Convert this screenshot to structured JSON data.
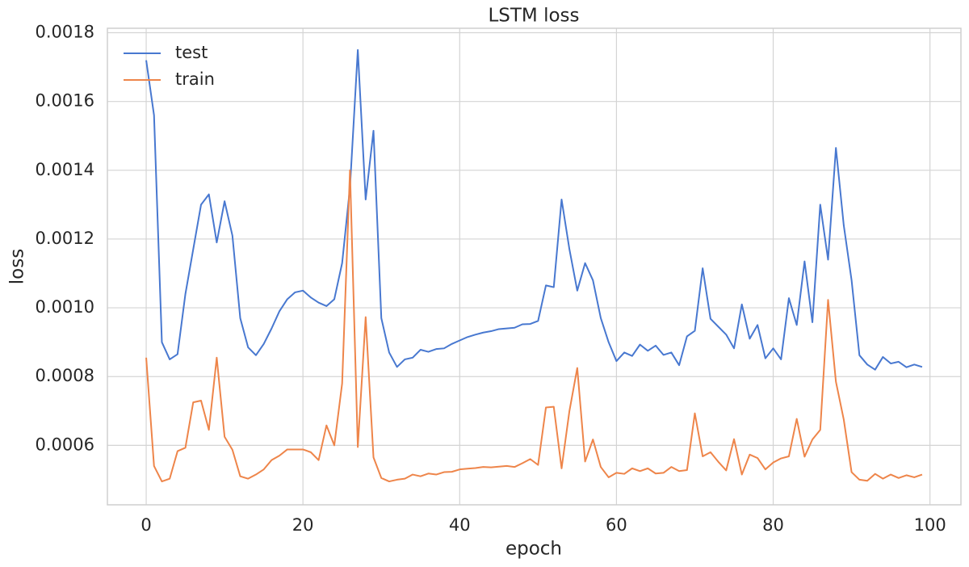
{
  "chart_data": {
    "type": "line",
    "title": "LSTM loss",
    "x_label": "epoch",
    "y_label": "loss",
    "x": [
      0,
      1,
      2,
      3,
      4,
      5,
      6,
      7,
      8,
      9,
      10,
      11,
      12,
      13,
      14,
      15,
      16,
      17,
      18,
      19,
      20,
      21,
      22,
      23,
      24,
      25,
      26,
      27,
      28,
      29,
      30,
      31,
      32,
      33,
      34,
      35,
      36,
      37,
      38,
      39,
      40,
      41,
      42,
      43,
      44,
      45,
      46,
      47,
      48,
      49,
      50,
      51,
      52,
      53,
      54,
      55,
      56,
      57,
      58,
      59,
      60,
      61,
      62,
      63,
      64,
      65,
      66,
      67,
      68,
      69,
      70,
      71,
      72,
      73,
      74,
      75,
      76,
      77,
      78,
      79,
      80,
      81,
      82,
      83,
      84,
      85,
      86,
      87,
      88,
      89,
      90,
      91,
      92,
      93,
      94,
      95,
      96,
      97,
      98,
      99
    ],
    "series": [
      {
        "name": "test",
        "color": "#4878d0",
        "values": [
          0.00172,
          0.00156,
          0.0009,
          0.00085,
          0.000865,
          0.00104,
          0.00117,
          0.0013,
          0.00133,
          0.00119,
          0.00131,
          0.00121,
          0.00097,
          0.000885,
          0.000862,
          0.000895,
          0.00094,
          0.00099,
          0.001025,
          0.001045,
          0.00105,
          0.00103,
          0.001015,
          0.001005,
          0.001025,
          0.00113,
          0.00135,
          0.00175,
          0.001315,
          0.001515,
          0.00097,
          0.00087,
          0.000828,
          0.00085,
          0.000855,
          0.000878,
          0.000872,
          0.00088,
          0.000882,
          0.000895,
          0.000905,
          0.000915,
          0.000922,
          0.000928,
          0.000932,
          0.000938,
          0.00094,
          0.000942,
          0.000952,
          0.000953,
          0.000962,
          0.001065,
          0.00106,
          0.001315,
          0.00117,
          0.00105,
          0.00113,
          0.00108,
          0.00097,
          0.0009,
          0.000845,
          0.00087,
          0.00086,
          0.000893,
          0.000875,
          0.00089,
          0.000863,
          0.00087,
          0.000833,
          0.000917,
          0.000933,
          0.001115,
          0.000968,
          0.000945,
          0.000922,
          0.000882,
          0.00101,
          0.00091,
          0.00095,
          0.000853,
          0.000882,
          0.00085,
          0.001028,
          0.00095,
          0.001135,
          0.000958,
          0.0013,
          0.00114,
          0.001465,
          0.00124,
          0.00108,
          0.000862,
          0.000835,
          0.00082,
          0.000857,
          0.000838,
          0.000843,
          0.000827,
          0.000835,
          0.000828
        ]
      },
      {
        "name": "train",
        "color": "#ee854a",
        "values": [
          0.000855,
          0.00054,
          0.000495,
          0.000503,
          0.000583,
          0.000593,
          0.000725,
          0.00073,
          0.000645,
          0.000855,
          0.000625,
          0.000587,
          0.00051,
          0.000503,
          0.000515,
          0.00053,
          0.000557,
          0.00057,
          0.000588,
          0.000588,
          0.000588,
          0.00058,
          0.000557,
          0.000658,
          0.0006,
          0.00078,
          0.0014,
          0.000595,
          0.000973,
          0.000565,
          0.000505,
          0.000495,
          0.0005,
          0.000503,
          0.000515,
          0.00051,
          0.000518,
          0.000515,
          0.000522,
          0.000523,
          0.00053,
          0.000532,
          0.000534,
          0.000537,
          0.000536,
          0.000538,
          0.00054,
          0.000537,
          0.000548,
          0.00056,
          0.000543,
          0.00071,
          0.000712,
          0.000533,
          0.0007,
          0.000825,
          0.000553,
          0.000617,
          0.000537,
          0.000507,
          0.00052,
          0.000517,
          0.000533,
          0.000525,
          0.000533,
          0.000518,
          0.00052,
          0.000537,
          0.000525,
          0.000528,
          0.000693,
          0.000568,
          0.00058,
          0.000552,
          0.000527,
          0.000618,
          0.000515,
          0.000573,
          0.000563,
          0.00053,
          0.00055,
          0.000562,
          0.000568,
          0.000677,
          0.000567,
          0.000617,
          0.000645,
          0.001023,
          0.000785,
          0.000675,
          0.000522,
          0.0005,
          0.000497,
          0.000517,
          0.000503,
          0.000515,
          0.000505,
          0.000513,
          0.000507,
          0.000515
        ]
      }
    ],
    "xlim": [
      -4.95,
      103.95
    ],
    "xticks": [
      0,
      20,
      40,
      60,
      80,
      100
    ],
    "ylim": [
      0.000427,
      0.001813
    ],
    "yticks": [
      0.0006,
      0.0008,
      {
        "value": 0.001,
        "label": "0.0010"
      },
      0.0012,
      0.0014,
      0.0016,
      0.0018
    ],
    "grid": true,
    "legend": "upper-left"
  }
}
